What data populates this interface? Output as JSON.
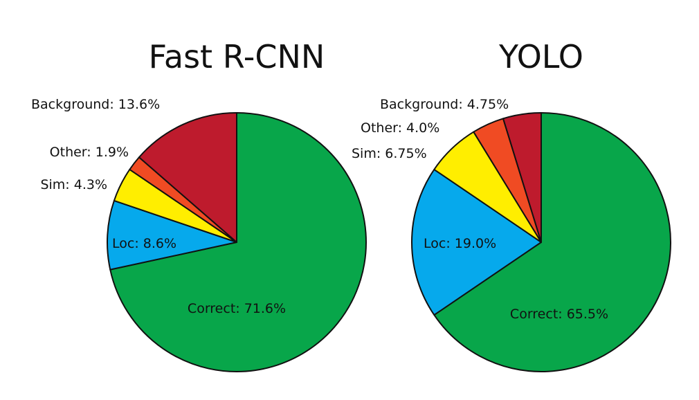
{
  "chart_data": [
    {
      "type": "pie",
      "title": "Fast R-CNN",
      "slices": [
        {
          "label": "Correct",
          "text": "Correct: 71.6%",
          "value": 71.6,
          "color": "#08A64A"
        },
        {
          "label": "Loc",
          "text": "Loc: 8.6%",
          "value": 8.6,
          "color": "#06A9EC"
        },
        {
          "label": "Sim",
          "text": "Sim: 4.3%",
          "value": 4.3,
          "color": "#FFEE00"
        },
        {
          "label": "Other",
          "text": "Other: 1.9%",
          "value": 1.9,
          "color": "#F04B23"
        },
        {
          "label": "Background",
          "text": "Background: 13.6%",
          "value": 13.6,
          "color": "#BE1B2D"
        }
      ]
    },
    {
      "type": "pie",
      "title": "YOLO",
      "slices": [
        {
          "label": "Correct",
          "text": "Correct: 65.5%",
          "value": 65.5,
          "color": "#08A64A"
        },
        {
          "label": "Loc",
          "text": "Loc: 19.0%",
          "value": 19.0,
          "color": "#06A9EC"
        },
        {
          "label": "Sim",
          "text": "Sim: 6.75%",
          "value": 6.75,
          "color": "#FFEE00"
        },
        {
          "label": "Other",
          "text": "Other: 4.0%",
          "value": 4.0,
          "color": "#F04B23"
        },
        {
          "label": "Background",
          "text": "Background: 4.75%",
          "value": 4.75,
          "color": "#BE1B2D"
        }
      ]
    }
  ]
}
